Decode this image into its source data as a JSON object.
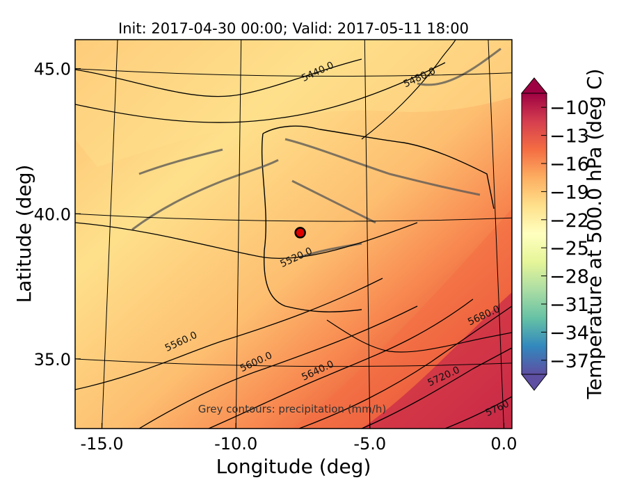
{
  "chart_data": {
    "type": "heatmap",
    "title": "Init: 2017-04-30 00:00; Valid: 2017-05-11 18:00",
    "xlabel": "Longitude (deg)",
    "ylabel": "Latitude (deg)",
    "xlim": [
      -16.0,
      0.3
    ],
    "ylim": [
      32.6,
      46.0
    ],
    "x_ticks": [
      -15.0,
      -10.0,
      -5.0,
      0.0
    ],
    "x_tick_labels": [
      "-15.0",
      "-10.0",
      "-5.0",
      "0.0"
    ],
    "y_ticks": [
      35.0,
      40.0,
      45.0
    ],
    "y_tick_labels": [
      "35.0",
      "40.0",
      "45.0"
    ],
    "colorbar": {
      "label": "Temperature at 500.0 hPa (deg C)",
      "min": -38.5,
      "max": -8.5,
      "extend": "both",
      "ticks": [
        -10,
        -13,
        -16,
        -19,
        -22,
        -25,
        -28,
        -31,
        -34,
        -37
      ],
      "tick_labels": [
        "−10",
        "−13",
        "−16",
        "−19",
        "−22",
        "−25",
        "−28",
        "−31",
        "−34",
        "−37"
      ],
      "colormap": "Spectral_r"
    },
    "height_contour_labels": [
      {
        "text": "5440.0",
        "lon": -6.9,
        "lat": 44.8
      },
      {
        "text": "5480.0",
        "lon": -3.1,
        "lat": 44.6
      },
      {
        "text": "5520.0",
        "lon": -7.7,
        "lat": 38.4
      },
      {
        "text": "5560.0",
        "lon": -12.0,
        "lat": 35.5
      },
      {
        "text": "5600.0",
        "lon": -9.2,
        "lat": 34.8
      },
      {
        "text": "5640.0",
        "lon": -6.9,
        "lat": 34.5
      },
      {
        "text": "5680.0",
        "lon": -0.7,
        "lat": 36.4
      },
      {
        "text": "5720.0",
        "lon": -2.2,
        "lat": 34.3
      },
      {
        "text": "5760",
        "lon": -0.2,
        "lat": 33.2
      }
    ],
    "marker": {
      "lon": -7.6,
      "lat": 39.35,
      "color": "#dd0000"
    },
    "annotation": "Grey contours: precipitation (mm/h)"
  }
}
